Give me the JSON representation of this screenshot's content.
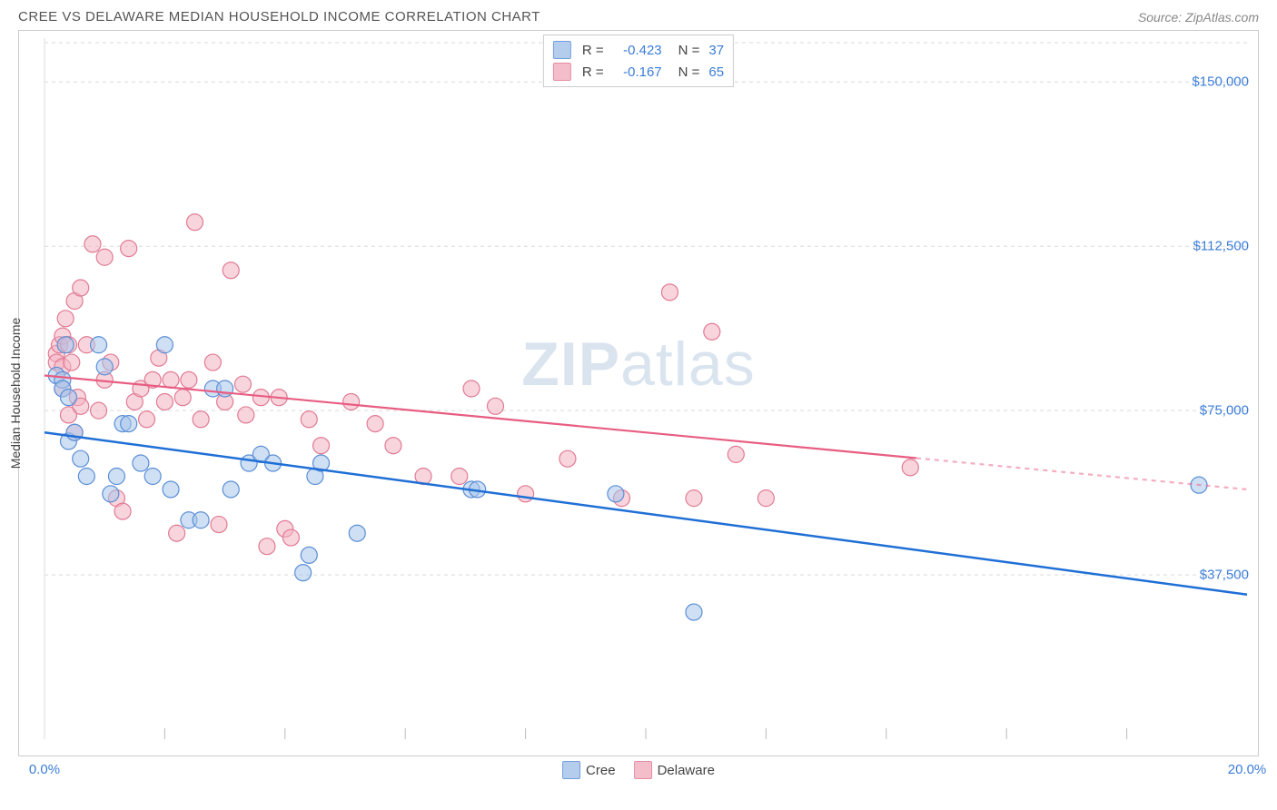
{
  "title": "CREE VS DELAWARE MEDIAN HOUSEHOLD INCOME CORRELATION CHART",
  "source": "Source: ZipAtlas.com",
  "watermark": "ZIPatlas",
  "yaxis_label": "Median Household Income",
  "chart": {
    "type": "scatter",
    "xlim": [
      0,
      20
    ],
    "ylim": [
      0,
      160000
    ],
    "x_ticks_minor": [
      2,
      4,
      6,
      8,
      10,
      12,
      14,
      16,
      18
    ],
    "y_grid": [
      37500,
      75000,
      112500,
      150000
    ],
    "y_tick_labels": [
      "$37,500",
      "$75,000",
      "$112,500",
      "$150,000"
    ],
    "x_tick_labels": {
      "0": "0.0%",
      "20": "20.0%"
    },
    "grid_color": "#d9d9d9",
    "grid_dash": "4,4",
    "axis_color": "#bbbbbb",
    "background_color": "#ffffff",
    "series": {
      "cree": {
        "label": "Cree",
        "fill": "#a7c5eb",
        "fill_opacity": 0.55,
        "stroke": "#5a8fd6",
        "marker_r": 9,
        "trend_color": "#1f6fd6",
        "trend_width": 2.5,
        "R": "-0.423",
        "N": "37",
        "trend": {
          "x1": 0,
          "y1": 70000,
          "x2": 20,
          "y2": 33000
        },
        "points": [
          [
            0.2,
            83000
          ],
          [
            0.3,
            82000
          ],
          [
            0.3,
            80000
          ],
          [
            0.35,
            90000
          ],
          [
            0.4,
            78000
          ],
          [
            0.4,
            68000
          ],
          [
            0.5,
            70000
          ],
          [
            0.6,
            64000
          ],
          [
            0.7,
            60000
          ],
          [
            0.9,
            90000
          ],
          [
            1.0,
            85000
          ],
          [
            1.1,
            56000
          ],
          [
            1.2,
            60000
          ],
          [
            1.3,
            72000
          ],
          [
            1.4,
            72000
          ],
          [
            1.6,
            63000
          ],
          [
            1.8,
            60000
          ],
          [
            2.0,
            90000
          ],
          [
            2.1,
            57000
          ],
          [
            2.4,
            50000
          ],
          [
            2.6,
            50000
          ],
          [
            2.8,
            80000
          ],
          [
            3.0,
            80000
          ],
          [
            3.1,
            57000
          ],
          [
            3.4,
            63000
          ],
          [
            3.6,
            65000
          ],
          [
            3.8,
            63000
          ],
          [
            4.3,
            38000
          ],
          [
            4.4,
            42000
          ],
          [
            4.5,
            60000
          ],
          [
            4.6,
            63000
          ],
          [
            5.2,
            47000
          ],
          [
            7.1,
            57000
          ],
          [
            7.2,
            57000
          ],
          [
            9.5,
            56000
          ],
          [
            10.8,
            29000
          ],
          [
            19.2,
            58000
          ]
        ]
      },
      "delaware": {
        "label": "Delaware",
        "fill": "#f3b2c1",
        "fill_opacity": 0.55,
        "stroke": "#e17a94",
        "marker_r": 9,
        "trend_color": "#e85d82",
        "trend_width": 2.2,
        "trend_dash_after_x": 14.5,
        "R": "-0.167",
        "N": "65",
        "trend": {
          "x1": 0,
          "y1": 83000,
          "x2": 20,
          "y2": 57000
        },
        "points": [
          [
            0.2,
            88000
          ],
          [
            0.2,
            86000
          ],
          [
            0.25,
            90000
          ],
          [
            0.3,
            92000
          ],
          [
            0.3,
            85000
          ],
          [
            0.3,
            80000
          ],
          [
            0.35,
            96000
          ],
          [
            0.4,
            74000
          ],
          [
            0.4,
            90000
          ],
          [
            0.45,
            86000
          ],
          [
            0.5,
            100000
          ],
          [
            0.5,
            70000
          ],
          [
            0.55,
            78000
          ],
          [
            0.6,
            103000
          ],
          [
            0.6,
            76000
          ],
          [
            0.7,
            90000
          ],
          [
            0.8,
            113000
          ],
          [
            0.9,
            75000
          ],
          [
            1.0,
            110000
          ],
          [
            1.0,
            82000
          ],
          [
            1.1,
            86000
          ],
          [
            1.2,
            55000
          ],
          [
            1.3,
            52000
          ],
          [
            1.4,
            112000
          ],
          [
            1.5,
            77000
          ],
          [
            1.6,
            80000
          ],
          [
            1.7,
            73000
          ],
          [
            1.8,
            82000
          ],
          [
            1.9,
            87000
          ],
          [
            2.0,
            77000
          ],
          [
            2.1,
            82000
          ],
          [
            2.2,
            47000
          ],
          [
            2.3,
            78000
          ],
          [
            2.4,
            82000
          ],
          [
            2.5,
            118000
          ],
          [
            2.6,
            73000
          ],
          [
            2.8,
            86000
          ],
          [
            2.9,
            49000
          ],
          [
            3.0,
            77000
          ],
          [
            3.1,
            107000
          ],
          [
            3.3,
            81000
          ],
          [
            3.35,
            74000
          ],
          [
            3.6,
            78000
          ],
          [
            3.7,
            44000
          ],
          [
            3.9,
            78000
          ],
          [
            4.0,
            48000
          ],
          [
            4.1,
            46000
          ],
          [
            4.4,
            73000
          ],
          [
            4.6,
            67000
          ],
          [
            5.1,
            77000
          ],
          [
            5.5,
            72000
          ],
          [
            5.8,
            67000
          ],
          [
            6.3,
            60000
          ],
          [
            6.9,
            60000
          ],
          [
            7.1,
            80000
          ],
          [
            7.5,
            76000
          ],
          [
            8.0,
            56000
          ],
          [
            8.7,
            64000
          ],
          [
            9.6,
            55000
          ],
          [
            10.4,
            102000
          ],
          [
            10.8,
            55000
          ],
          [
            11.1,
            93000
          ],
          [
            11.5,
            65000
          ],
          [
            12.0,
            55000
          ],
          [
            14.4,
            62000
          ]
        ]
      }
    }
  },
  "legend_bottom": {
    "items": [
      {
        "key": "cree",
        "label": "Cree"
      },
      {
        "key": "delaware",
        "label": "Delaware"
      }
    ]
  }
}
